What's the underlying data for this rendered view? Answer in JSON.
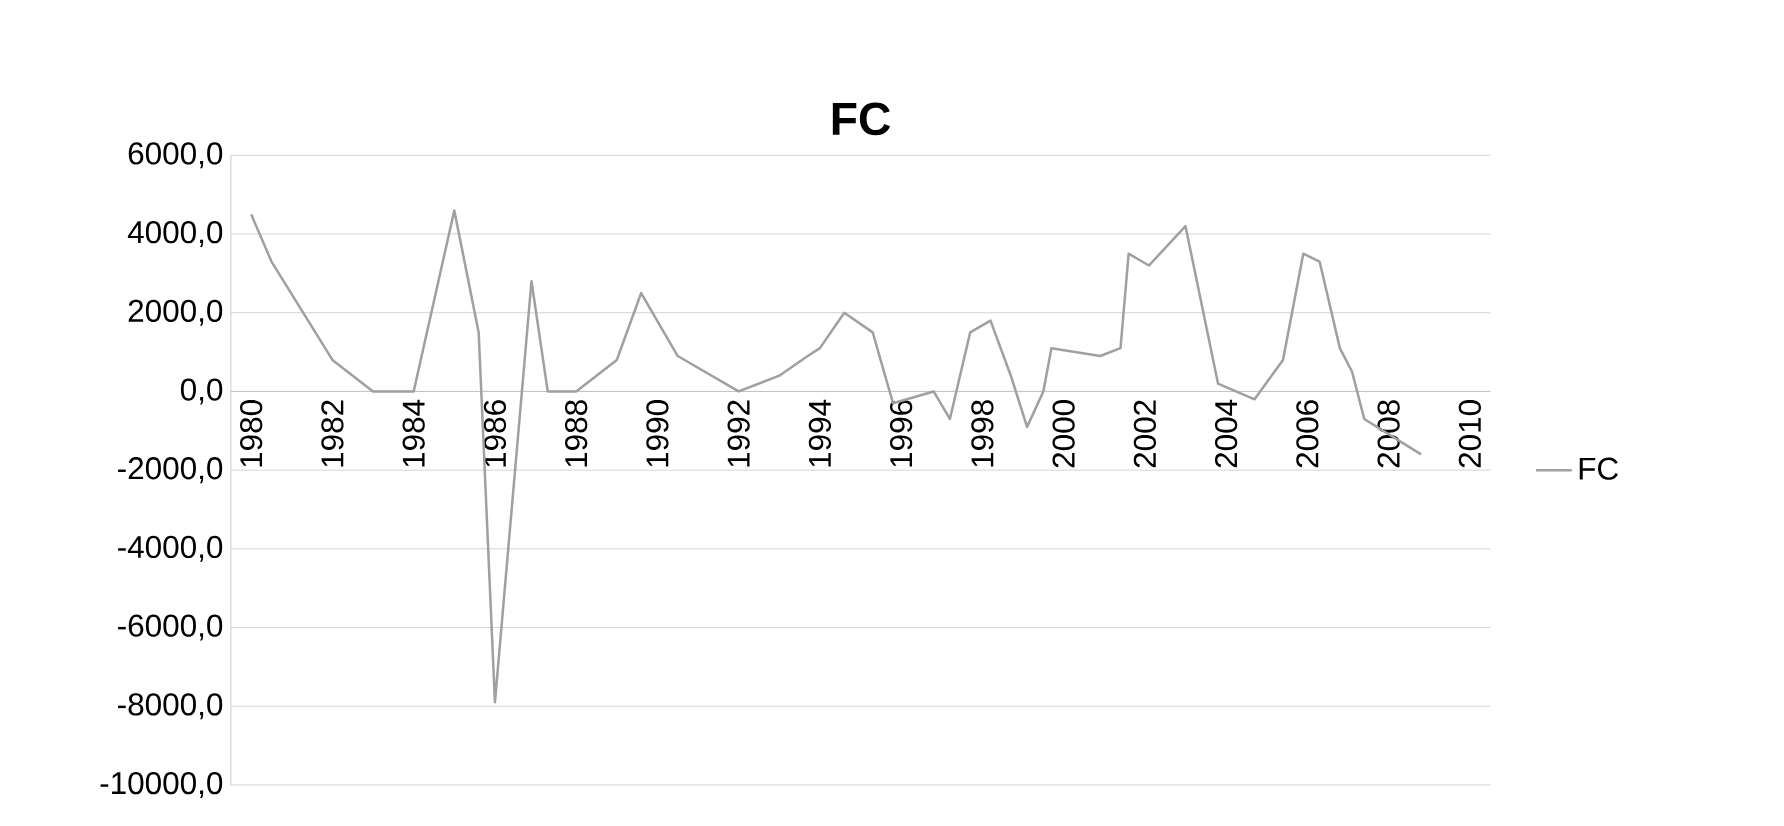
{
  "chart_data": {
    "type": "line",
    "title": "FC",
    "x": [
      1980,
      1980.5,
      1982,
      1983,
      1984,
      1985,
      1985.6,
      1986,
      1986.9,
      1987.3,
      1988,
      1989,
      1989.6,
      1990.5,
      1992,
      1993,
      1993.7,
      1994,
      1994.6,
      1995.3,
      1995.8,
      1996.8,
      1997.2,
      1997.7,
      1998.2,
      1998.7,
      1999.1,
      1999.5,
      1999.7,
      2000.9,
      2001.4,
      2001.6,
      2002.1,
      2003,
      2003.2,
      2003.8,
      2004.7,
      2005.4,
      2005.9,
      2006.3,
      2006.8,
      2007.1,
      2007.4,
      2008.8
    ],
    "series": [
      {
        "name": "FC",
        "color": "#a0a0a0",
        "values": [
          4500,
          3300,
          800,
          0,
          0,
          4600,
          1500,
          -7900,
          2800,
          0,
          0,
          800,
          2500,
          900,
          0,
          400,
          900,
          1100,
          2000,
          1500,
          -300,
          0,
          -700,
          1500,
          1800,
          400,
          -900,
          0,
          1100,
          900,
          1100,
          3500,
          3200,
          4200,
          3200,
          200,
          -200,
          800,
          3500,
          3300,
          1100,
          500,
          -700,
          -1600
        ]
      }
    ],
    "xlim": [
      1979.5,
      2010.5
    ],
    "xticks": [
      1980,
      1982,
      1984,
      1986,
      1988,
      1990,
      1992,
      1994,
      1996,
      1998,
      2000,
      2002,
      2004,
      2006,
      2008,
      2010
    ],
    "ylim": [
      -10000,
      6000
    ],
    "yticks": [
      {
        "value": 6000,
        "label": "6000,0"
      },
      {
        "value": 4000,
        "label": "4000,0"
      },
      {
        "value": 2000,
        "label": "2000,0"
      },
      {
        "value": 0,
        "label": "0,0"
      },
      {
        "value": -2000,
        "label": "-2000,0"
      },
      {
        "value": -4000,
        "label": "-4000,0"
      },
      {
        "value": -6000,
        "label": "-6000,0"
      },
      {
        "value": -8000,
        "label": "-8000,0"
      },
      {
        "value": -10000,
        "label": "-10000,0"
      }
    ],
    "grid": "y",
    "legend": "right"
  }
}
